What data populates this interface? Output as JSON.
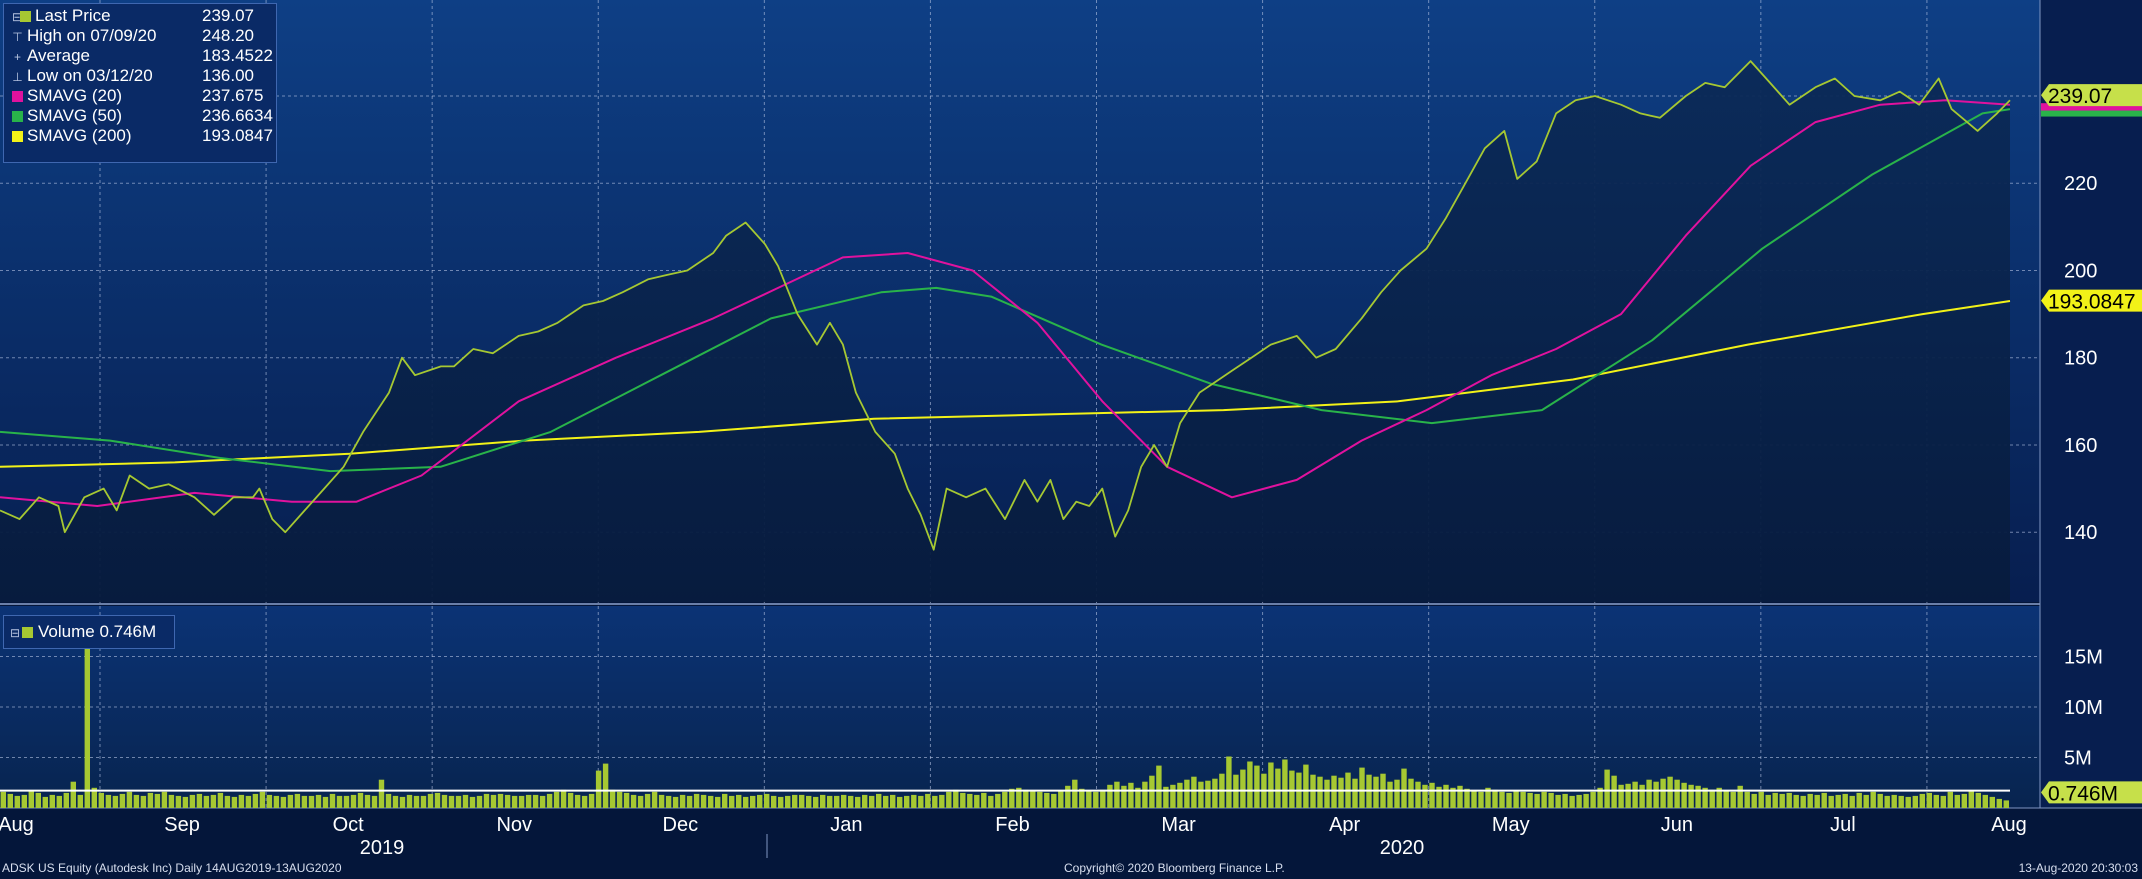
{
  "legend": {
    "last_price": {
      "label": "Last Price",
      "value": "239.07",
      "color": "#a6c832"
    },
    "high": {
      "label": "High on 07/09/20",
      "value": "248.20"
    },
    "average": {
      "label": "Average",
      "value": "183.4522"
    },
    "low": {
      "label": "Low on 03/12/20",
      "value": "136.00"
    },
    "sma20": {
      "label": "SMAVG (20)",
      "value": "237.675",
      "color": "#e0129e"
    },
    "sma50": {
      "label": "SMAVG (50)",
      "value": "236.6634",
      "color": "#29b34a"
    },
    "sma200": {
      "label": "SMAVG (200)",
      "value": "193.0847",
      "color": "#f2f218"
    }
  },
  "volume_legend": {
    "label": "Volume",
    "value": "0.746M",
    "color": "#a6c832"
  },
  "footer": {
    "left": "ADSK US Equity (Autodesk Inc)  Daily 14AUG2019-13AUG2020",
    "center": "Copyright© 2020 Bloomberg Finance L.P.",
    "right": "13-Aug-2020 20:30:03"
  },
  "chart_data": [
    {
      "type": "line",
      "panel": "price",
      "x_labels": [
        "Aug",
        "Sep",
        "Oct",
        "Nov",
        "Dec",
        "Jan",
        "Feb",
        "Mar",
        "Apr",
        "May",
        "Jun",
        "Jul",
        "Aug"
      ],
      "year_labels": [
        "2019",
        "2020"
      ],
      "y_ticks": [
        140,
        160,
        180,
        200,
        220
      ],
      "ylim": [
        124,
        262
      ],
      "grid": true,
      "legend_position": "top-left",
      "value_labels": [
        "239.07",
        "193.0847"
      ],
      "series": [
        {
          "name": "Last Price",
          "color": "#a6c832",
          "points": [
            [
              0,
              145
            ],
            [
              0.3,
              143
            ],
            [
              0.6,
              148
            ],
            [
              0.9,
              146
            ],
            [
              1.0,
              140
            ],
            [
              1.3,
              148
            ],
            [
              1.6,
              150
            ],
            [
              1.8,
              145
            ],
            [
              2.0,
              153
            ],
            [
              2.3,
              150
            ],
            [
              2.6,
              151
            ],
            [
              3.0,
              148
            ],
            [
              3.3,
              144
            ],
            [
              3.6,
              148
            ],
            [
              3.9,
              148
            ],
            [
              4.0,
              150
            ],
            [
              4.2,
              143
            ],
            [
              4.4,
              140
            ],
            [
              4.7,
              145
            ],
            [
              5.0,
              150
            ],
            [
              5.3,
              155
            ],
            [
              5.6,
              163
            ],
            [
              6.0,
              172
            ],
            [
              6.2,
              180
            ],
            [
              6.4,
              176
            ],
            [
              6.8,
              178
            ],
            [
              7.0,
              178
            ],
            [
              7.3,
              182
            ],
            [
              7.6,
              181
            ],
            [
              8.0,
              185
            ],
            [
              8.3,
              186
            ],
            [
              8.6,
              188
            ],
            [
              9.0,
              192
            ],
            [
              9.3,
              193
            ],
            [
              9.6,
              195
            ],
            [
              10.0,
              198
            ],
            [
              10.3,
              199
            ],
            [
              10.6,
              200
            ],
            [
              11.0,
              204
            ],
            [
              11.2,
              208
            ],
            [
              11.5,
              211
            ],
            [
              11.8,
              206
            ],
            [
              12.0,
              201
            ],
            [
              12.3,
              190
            ],
            [
              12.6,
              183
            ],
            [
              12.8,
              188
            ],
            [
              13.0,
              183
            ],
            [
              13.2,
              172
            ],
            [
              13.5,
              163
            ],
            [
              13.8,
              158
            ],
            [
              14.0,
              150
            ],
            [
              14.2,
              144
            ],
            [
              14.4,
              136
            ],
            [
              14.6,
              150
            ],
            [
              14.9,
              148
            ],
            [
              15.2,
              150
            ],
            [
              15.5,
              143
            ],
            [
              15.8,
              152
            ],
            [
              16.0,
              147
            ],
            [
              16.2,
              152
            ],
            [
              16.4,
              143
            ],
            [
              16.6,
              147
            ],
            [
              16.8,
              146
            ],
            [
              17.0,
              150
            ],
            [
              17.2,
              139
            ],
            [
              17.4,
              145
            ],
            [
              17.6,
              155
            ],
            [
              17.8,
              160
            ],
            [
              18.0,
              155
            ],
            [
              18.2,
              165
            ],
            [
              18.5,
              172
            ],
            [
              18.8,
              175
            ],
            [
              19.0,
              177
            ],
            [
              19.3,
              180
            ],
            [
              19.6,
              183
            ],
            [
              20.0,
              185
            ],
            [
              20.3,
              180
            ],
            [
              20.6,
              182
            ],
            [
              21.0,
              189
            ],
            [
              21.3,
              195
            ],
            [
              21.6,
              200
            ],
            [
              22.0,
              205
            ],
            [
              22.3,
              212
            ],
            [
              22.6,
              220
            ],
            [
              22.9,
              228
            ],
            [
              23.2,
              232
            ],
            [
              23.4,
              221
            ],
            [
              23.7,
              225
            ],
            [
              24.0,
              236
            ],
            [
              24.3,
              239
            ],
            [
              24.6,
              240
            ],
            [
              25.0,
              238
            ],
            [
              25.3,
              236
            ],
            [
              25.6,
              235
            ],
            [
              26.0,
              240
            ],
            [
              26.3,
              243
            ],
            [
              26.6,
              242
            ],
            [
              27.0,
              248
            ],
            [
              27.3,
              243
            ],
            [
              27.6,
              238
            ],
            [
              28.0,
              242
            ],
            [
              28.3,
              244
            ],
            [
              28.6,
              240
            ],
            [
              29.0,
              239
            ],
            [
              29.3,
              241
            ],
            [
              29.6,
              238
            ],
            [
              29.9,
              244
            ],
            [
              30.1,
              237
            ],
            [
              30.5,
              232
            ],
            [
              30.8,
              236
            ],
            [
              31.0,
              239
            ]
          ]
        },
        {
          "name": "SMAVG (20)",
          "color": "#e0129e",
          "points": [
            [
              0,
              148
            ],
            [
              1.5,
              146
            ],
            [
              3.0,
              149
            ],
            [
              4.5,
              147
            ],
            [
              5.5,
              147
            ],
            [
              6.5,
              153
            ],
            [
              8.0,
              170
            ],
            [
              9.5,
              180
            ],
            [
              11.0,
              189
            ],
            [
              12.0,
              196
            ],
            [
              13.0,
              203
            ],
            [
              14.0,
              204
            ],
            [
              15.0,
              200
            ],
            [
              16.0,
              188
            ],
            [
              17.0,
              170
            ],
            [
              18.0,
              155
            ],
            [
              19.0,
              148
            ],
            [
              20.0,
              152
            ],
            [
              21.0,
              161
            ],
            [
              22.0,
              168
            ],
            [
              23.0,
              176
            ],
            [
              24.0,
              182
            ],
            [
              25.0,
              190
            ],
            [
              26.0,
              208
            ],
            [
              27.0,
              224
            ],
            [
              28.0,
              234
            ],
            [
              29.0,
              238
            ],
            [
              30.0,
              239
            ],
            [
              31.0,
              238
            ]
          ]
        },
        {
          "name": "SMAVG (50)",
          "color": "#29b34a",
          "points": [
            [
              0,
              163
            ],
            [
              2.0,
              161
            ],
            [
              4.0,
              157
            ],
            [
              6.0,
              154
            ],
            [
              8.0,
              155
            ],
            [
              10.0,
              163
            ],
            [
              12.0,
              176
            ],
            [
              14.0,
              189
            ],
            [
              16.0,
              195
            ],
            [
              17.0,
              196
            ],
            [
              18.0,
              194
            ],
            [
              20.0,
              183
            ],
            [
              22.0,
              174
            ],
            [
              24.0,
              168
            ],
            [
              26.0,
              165
            ],
            [
              28.0,
              168
            ],
            [
              30.0,
              184
            ],
            [
              32.0,
              205
            ],
            [
              34.0,
              222
            ],
            [
              36.0,
              236
            ],
            [
              36.5,
              237
            ]
          ]
        },
        {
          "name": "SMAVG (200)",
          "color": "#f2f218",
          "points": [
            [
              0,
              155
            ],
            [
              4.0,
              156
            ],
            [
              8.0,
              158
            ],
            [
              12.0,
              161
            ],
            [
              16.0,
              163
            ],
            [
              20.0,
              166
            ],
            [
              24.0,
              167
            ],
            [
              28.0,
              168
            ],
            [
              32.0,
              170
            ],
            [
              36.0,
              175
            ],
            [
              40.0,
              183
            ],
            [
              44.0,
              190
            ],
            [
              46.0,
              193
            ]
          ]
        }
      ]
    },
    {
      "type": "bar",
      "panel": "volume",
      "y_ticks": [
        "5M",
        "10M",
        "15M"
      ],
      "ylim": [
        0,
        20
      ],
      "value_labels": [
        "0.746M"
      ],
      "average_line": {
        "color": "#ffffff",
        "value": 1.72
      },
      "series": [
        {
          "name": "Volume",
          "color": "#a6c832",
          "values": [
            1.6,
            1.4,
            1.2,
            1.3,
            1.7,
            1.5,
            1.1,
            1.3,
            1.2,
            1.5,
            2.6,
            1.3,
            17.5,
            2.0,
            1.5,
            1.3,
            1.2,
            1.4,
            1.6,
            1.3,
            1.2,
            1.5,
            1.4,
            1.6,
            1.3,
            1.2,
            1.1,
            1.3,
            1.4,
            1.2,
            1.3,
            1.5,
            1.2,
            1.1,
            1.3,
            1.2,
            1.4,
            1.6,
            1.3,
            1.2,
            1.1,
            1.3,
            1.4,
            1.2,
            1.2,
            1.3,
            1.1,
            1.4,
            1.2,
            1.2,
            1.3,
            1.5,
            1.3,
            1.2,
            2.8,
            1.4,
            1.2,
            1.1,
            1.3,
            1.2,
            1.2,
            1.4,
            1.5,
            1.3,
            1.2,
            1.2,
            1.3,
            1.1,
            1.2,
            1.4,
            1.3,
            1.4,
            1.3,
            1.2,
            1.2,
            1.3,
            1.3,
            1.2,
            1.4,
            1.6,
            1.8,
            1.5,
            1.3,
            1.2,
            1.4,
            3.7,
            4.4,
            1.8,
            1.6,
            1.5,
            1.3,
            1.2,
            1.4,
            1.6,
            1.3,
            1.2,
            1.1,
            1.3,
            1.2,
            1.4,
            1.3,
            1.2,
            1.1,
            1.4,
            1.2,
            1.3,
            1.1,
            1.2,
            1.3,
            1.4,
            1.2,
            1.1,
            1.2,
            1.3,
            1.3,
            1.2,
            1.1,
            1.3,
            1.2,
            1.2,
            1.3,
            1.2,
            1.1,
            1.3,
            1.2,
            1.4,
            1.2,
            1.3,
            1.1,
            1.2,
            1.3,
            1.2,
            1.4,
            1.2,
            1.3,
            1.6,
            1.8,
            1.5,
            1.4,
            1.3,
            1.5,
            1.2,
            1.4,
            1.6,
            1.9,
            2.0,
            1.8,
            1.7,
            1.6,
            1.5,
            1.4,
            1.7,
            2.2,
            2.8,
            1.9,
            1.7,
            1.6,
            1.8,
            2.3,
            2.6,
            2.2,
            2.5,
            2.0,
            2.6,
            3.2,
            4.2,
            2.1,
            2.3,
            2.5,
            2.8,
            3.1,
            2.6,
            2.7,
            2.9,
            3.4,
            5.1,
            3.3,
            3.8,
            4.6,
            4.2,
            3.4,
            4.5,
            3.9,
            4.8,
            3.7,
            3.5,
            4.3,
            3.3,
            3.1,
            2.8,
            3.2,
            3.0,
            3.5,
            2.9,
            4.0,
            3.3,
            3.1,
            3.4,
            2.6,
            2.8,
            3.9,
            2.9,
            2.6,
            2.3,
            2.5,
            2.1,
            2.3,
            2.0,
            2.2,
            1.9,
            1.7,
            1.6,
            2.0,
            1.8,
            1.6,
            1.5,
            1.7,
            1.6,
            1.5,
            1.4,
            1.6,
            1.5,
            1.3,
            1.4,
            1.2,
            1.3,
            1.4,
            1.6,
            2.0,
            3.8,
            3.2,
            2.3,
            2.4,
            2.6,
            2.3,
            2.8,
            2.6,
            2.9,
            3.1,
            2.8,
            2.5,
            2.3,
            2.2,
            2.0,
            1.8,
            2.0,
            1.7,
            1.6,
            2.2,
            1.6,
            1.4,
            1.6,
            1.3,
            1.5,
            1.4,
            1.5,
            1.3,
            1.2,
            1.4,
            1.3,
            1.5,
            1.2,
            1.3,
            1.4,
            1.2,
            1.5,
            1.3,
            1.6,
            1.4,
            1.2,
            1.3,
            1.2,
            1.1,
            1.2,
            1.4,
            1.5,
            1.3,
            1.2,
            1.6,
            1.3,
            1.4,
            1.7,
            1.5,
            1.3,
            1.1,
            0.9,
            0.75
          ]
        }
      ]
    }
  ]
}
